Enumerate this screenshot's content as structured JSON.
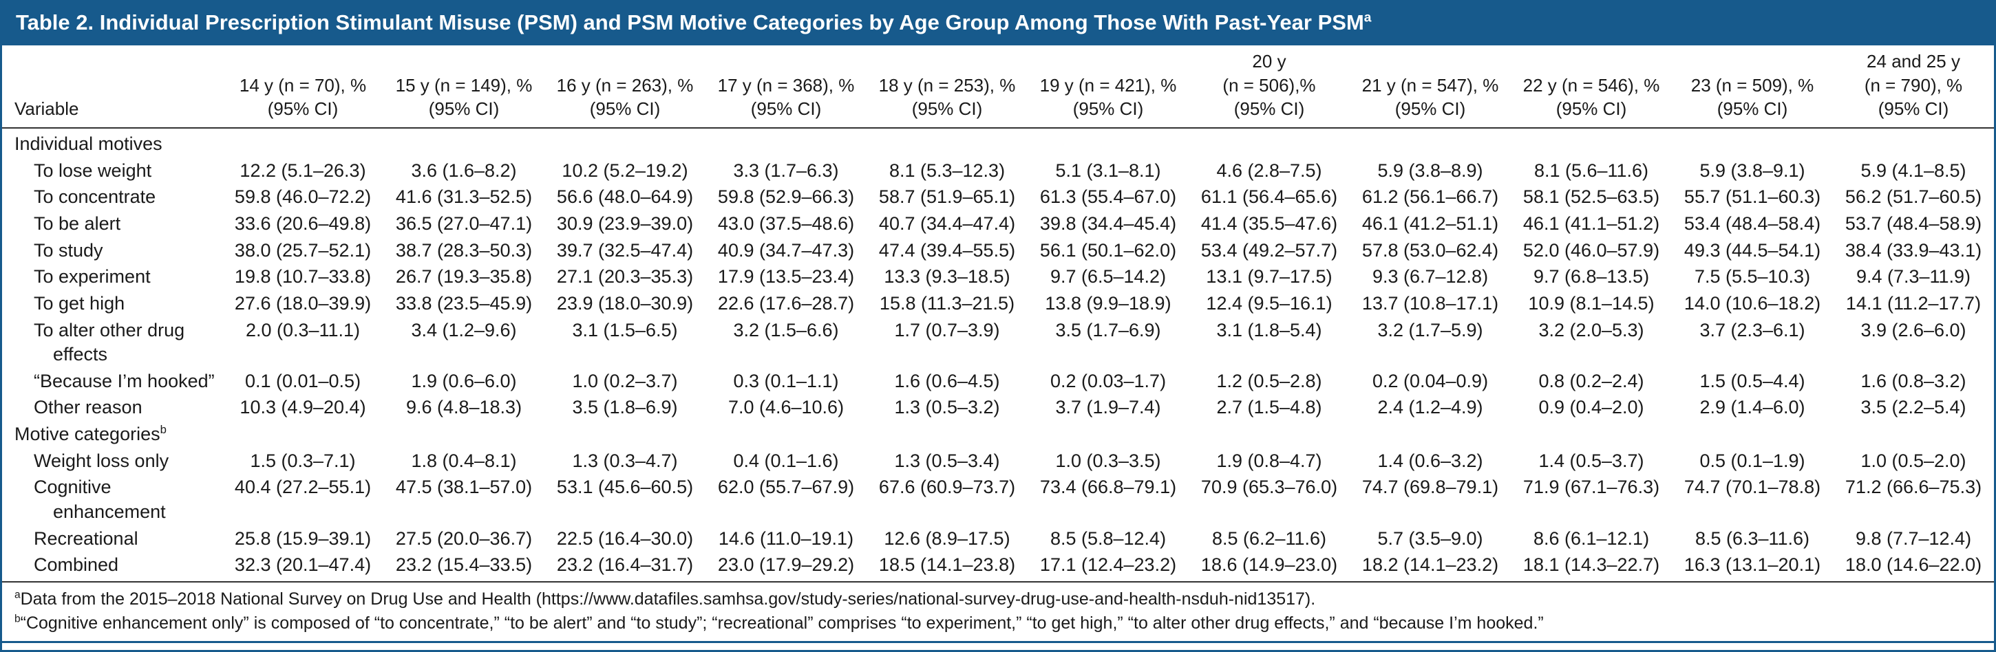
{
  "colors": {
    "header_bar_blue": "#175a8c",
    "outer_border_blue": "#175a8c",
    "rule_dark": "#333333",
    "text": "#1a1a1a",
    "title_text": "#ffffff"
  },
  "title": {
    "text": "Table 2. Individual Prescription Stimulant Misuse (PSM) and PSM Motive Categories by Age Group Among Those With Past-Year PSM",
    "sup": "a"
  },
  "table": {
    "variable_header": "Variable",
    "columns": [
      {
        "lines": [
          "14 y (n = 70), %",
          "(95% CI)"
        ]
      },
      {
        "lines": [
          "15 y (n = 149), %",
          "(95% CI)"
        ]
      },
      {
        "lines": [
          "16 y (n = 263), %",
          "(95% CI)"
        ]
      },
      {
        "lines": [
          "17 y (n = 368), %",
          "(95% CI)"
        ]
      },
      {
        "lines": [
          "18 y (n = 253), %",
          "(95% CI)"
        ]
      },
      {
        "lines": [
          "19 y (n = 421), %",
          "(95% CI)"
        ]
      },
      {
        "lines": [
          "20 y",
          "(n = 506),%",
          "(95% CI)"
        ]
      },
      {
        "lines": [
          "21 y (n = 547), %",
          "(95% CI)"
        ]
      },
      {
        "lines": [
          "22 y (n = 546), %",
          "(95% CI)"
        ]
      },
      {
        "lines": [
          "23 (n = 509), %",
          "(95% CI)"
        ]
      },
      {
        "lines": [
          "24 and 25 y",
          "(n = 790), %",
          "(95% CI)"
        ]
      }
    ],
    "rows": [
      {
        "type": "section",
        "label": "Individual motives",
        "sup": ""
      },
      {
        "type": "item",
        "label": "To lose weight",
        "values": [
          "12.2 (5.1–26.3)",
          "3.6 (1.6–8.2)",
          "10.2 (5.2–19.2)",
          "3.3 (1.7–6.3)",
          "8.1 (5.3–12.3)",
          "5.1 (3.1–8.1)",
          "4.6 (2.8–7.5)",
          "5.9 (3.8–8.9)",
          "8.1 (5.6–11.6)",
          "5.9 (3.8–9.1)",
          "5.9 (4.1–8.5)"
        ]
      },
      {
        "type": "item",
        "label": "To concentrate",
        "values": [
          "59.8 (46.0–72.2)",
          "41.6 (31.3–52.5)",
          "56.6 (48.0–64.9)",
          "59.8 (52.9–66.3)",
          "58.7 (51.9–65.1)",
          "61.3 (55.4–67.0)",
          "61.1 (56.4–65.6)",
          "61.2 (56.1–66.7)",
          "58.1 (52.5–63.5)",
          "55.7 (51.1–60.3)",
          "56.2 (51.7–60.5)"
        ]
      },
      {
        "type": "item",
        "label": "To be alert",
        "values": [
          "33.6 (20.6–49.8)",
          "36.5 (27.0–47.1)",
          "30.9 (23.9–39.0)",
          "43.0 (37.5–48.6)",
          "40.7 (34.4–47.4)",
          "39.8 (34.4–45.4)",
          "41.4 (35.5–47.6)",
          "46.1 (41.2–51.1)",
          "46.1 (41.1–51.2)",
          "53.4 (48.4–58.4)",
          "53.7 (48.4–58.9)"
        ]
      },
      {
        "type": "item",
        "label": "To study",
        "values": [
          "38.0 (25.7–52.1)",
          "38.7 (28.3–50.3)",
          "39.7 (32.5–47.4)",
          "40.9 (34.7–47.3)",
          "47.4 (39.4–55.5)",
          "56.1 (50.1–62.0)",
          "53.4 (49.2–57.7)",
          "57.8 (53.0–62.4)",
          "52.0 (46.0–57.9)",
          "49.3 (44.5–54.1)",
          "38.4 (33.9–43.1)"
        ]
      },
      {
        "type": "item",
        "label": "To experiment",
        "values": [
          "19.8 (10.7–33.8)",
          "26.7 (19.3–35.8)",
          "27.1 (20.3–35.3)",
          "17.9 (13.5–23.4)",
          "13.3 (9.3–18.5)",
          "9.7 (6.5–14.2)",
          "13.1 (9.7–17.5)",
          "9.3 (6.7–12.8)",
          "9.7 (6.8–13.5)",
          "7.5 (5.5–10.3)",
          "9.4 (7.3–11.9)"
        ]
      },
      {
        "type": "item",
        "label": "To get high",
        "values": [
          "27.6 (18.0–39.9)",
          "33.8 (23.5–45.9)",
          "23.9 (18.0–30.9)",
          "22.6 (17.6–28.7)",
          "15.8 (11.3–21.5)",
          "13.8 (9.9–18.9)",
          "12.4 (9.5–16.1)",
          "13.7 (10.8–17.1)",
          "10.9 (8.1–14.5)",
          "14.0 (10.6–18.2)",
          "14.1 (11.2–17.7)"
        ]
      },
      {
        "type": "item",
        "label": "To alter other drug effects",
        "values": [
          "2.0 (0.3–11.1)",
          "3.4 (1.2–9.6)",
          "3.1 (1.5–6.5)",
          "3.2 (1.5–6.6)",
          "1.7 (0.7–3.9)",
          "3.5 (1.7–6.9)",
          "3.1 (1.8–5.4)",
          "3.2 (1.7–5.9)",
          "3.2 (2.0–5.3)",
          "3.7 (2.3–6.1)",
          "3.9 (2.6–6.0)"
        ]
      },
      {
        "type": "item",
        "label": "“Because I’m hooked”",
        "values": [
          "0.1 (0.01–0.5)",
          "1.9 (0.6–6.0)",
          "1.0 (0.2–3.7)",
          "0.3 (0.1–1.1)",
          "1.6 (0.6–4.5)",
          "0.2 (0.03–1.7)",
          "1.2 (0.5–2.8)",
          "0.2 (0.04–0.9)",
          "0.8 (0.2–2.4)",
          "1.5 (0.5–4.4)",
          "1.6 (0.8–3.2)"
        ]
      },
      {
        "type": "item",
        "label": "Other reason",
        "values": [
          "10.3 (4.9–20.4)",
          "9.6 (4.8–18.3)",
          "3.5 (1.8–6.9)",
          "7.0 (4.6–10.6)",
          "1.3 (0.5–3.2)",
          "3.7 (1.9–7.4)",
          "2.7 (1.5–4.8)",
          "2.4 (1.2–4.9)",
          "0.9 (0.4–2.0)",
          "2.9 (1.4–6.0)",
          "3.5 (2.2–5.4)"
        ]
      },
      {
        "type": "section",
        "label": "Motive categories",
        "sup": "b"
      },
      {
        "type": "item",
        "label": "Weight loss only",
        "values": [
          "1.5 (0.3–7.1)",
          "1.8 (0.4–8.1)",
          "1.3 (0.3–4.7)",
          "0.4 (0.1–1.6)",
          "1.3 (0.5–3.4)",
          "1.0 (0.3–3.5)",
          "1.9 (0.8–4.7)",
          "1.4 (0.6–3.2)",
          "1.4 (0.5–3.7)",
          "0.5 (0.1–1.9)",
          "1.0 (0.5–2.0)"
        ]
      },
      {
        "type": "item",
        "label": "Cognitive enhancement",
        "values": [
          "40.4 (27.2–55.1)",
          "47.5 (38.1–57.0)",
          "53.1 (45.6–60.5)",
          "62.0 (55.7–67.9)",
          "67.6 (60.9–73.7)",
          "73.4 (66.8–79.1)",
          "70.9 (65.3–76.0)",
          "74.7 (69.8–79.1)",
          "71.9 (67.1–76.3)",
          "74.7 (70.1–78.8)",
          "71.2 (66.6–75.3)"
        ]
      },
      {
        "type": "item",
        "label": "Recreational",
        "values": [
          "25.8 (15.9–39.1)",
          "27.5 (20.0–36.7)",
          "22.5 (16.4–30.0)",
          "14.6 (11.0–19.1)",
          "12.6 (8.9–17.5)",
          "8.5 (5.8–12.4)",
          "8.5 (6.2–11.6)",
          "5.7 (3.5–9.0)",
          "8.6 (6.1–12.1)",
          "8.5 (6.3–11.6)",
          "9.8 (7.7–12.4)"
        ]
      },
      {
        "type": "item",
        "label": "Combined",
        "values": [
          "32.3 (20.1–47.4)",
          "23.2 (15.4–33.5)",
          "23.2 (16.4–31.7)",
          "23.0 (17.9–29.2)",
          "18.5 (14.1–23.8)",
          "17.1 (12.4–23.2)",
          "18.6 (14.9–23.0)",
          "18.2 (14.1–23.2)",
          "18.1 (14.3–22.7)",
          "16.3 (13.1–20.1)",
          "18.0 (14.6–22.0)"
        ]
      }
    ]
  },
  "footnotes": [
    {
      "sup": "a",
      "text": "Data from the 2015–2018 National Survey on Drug Use and Health (https://www.datafiles.samhsa.gov/study-series/national-survey-drug-use-and-health-nsduh-nid13517)."
    },
    {
      "sup": "b",
      "text": "“Cognitive enhancement only” is composed of “to concentrate,” “to be alert” and “to study”; “recreational” comprises “to experiment,” “to get high,” “to alter other drug effects,” and “because I’m hooked.”"
    }
  ]
}
